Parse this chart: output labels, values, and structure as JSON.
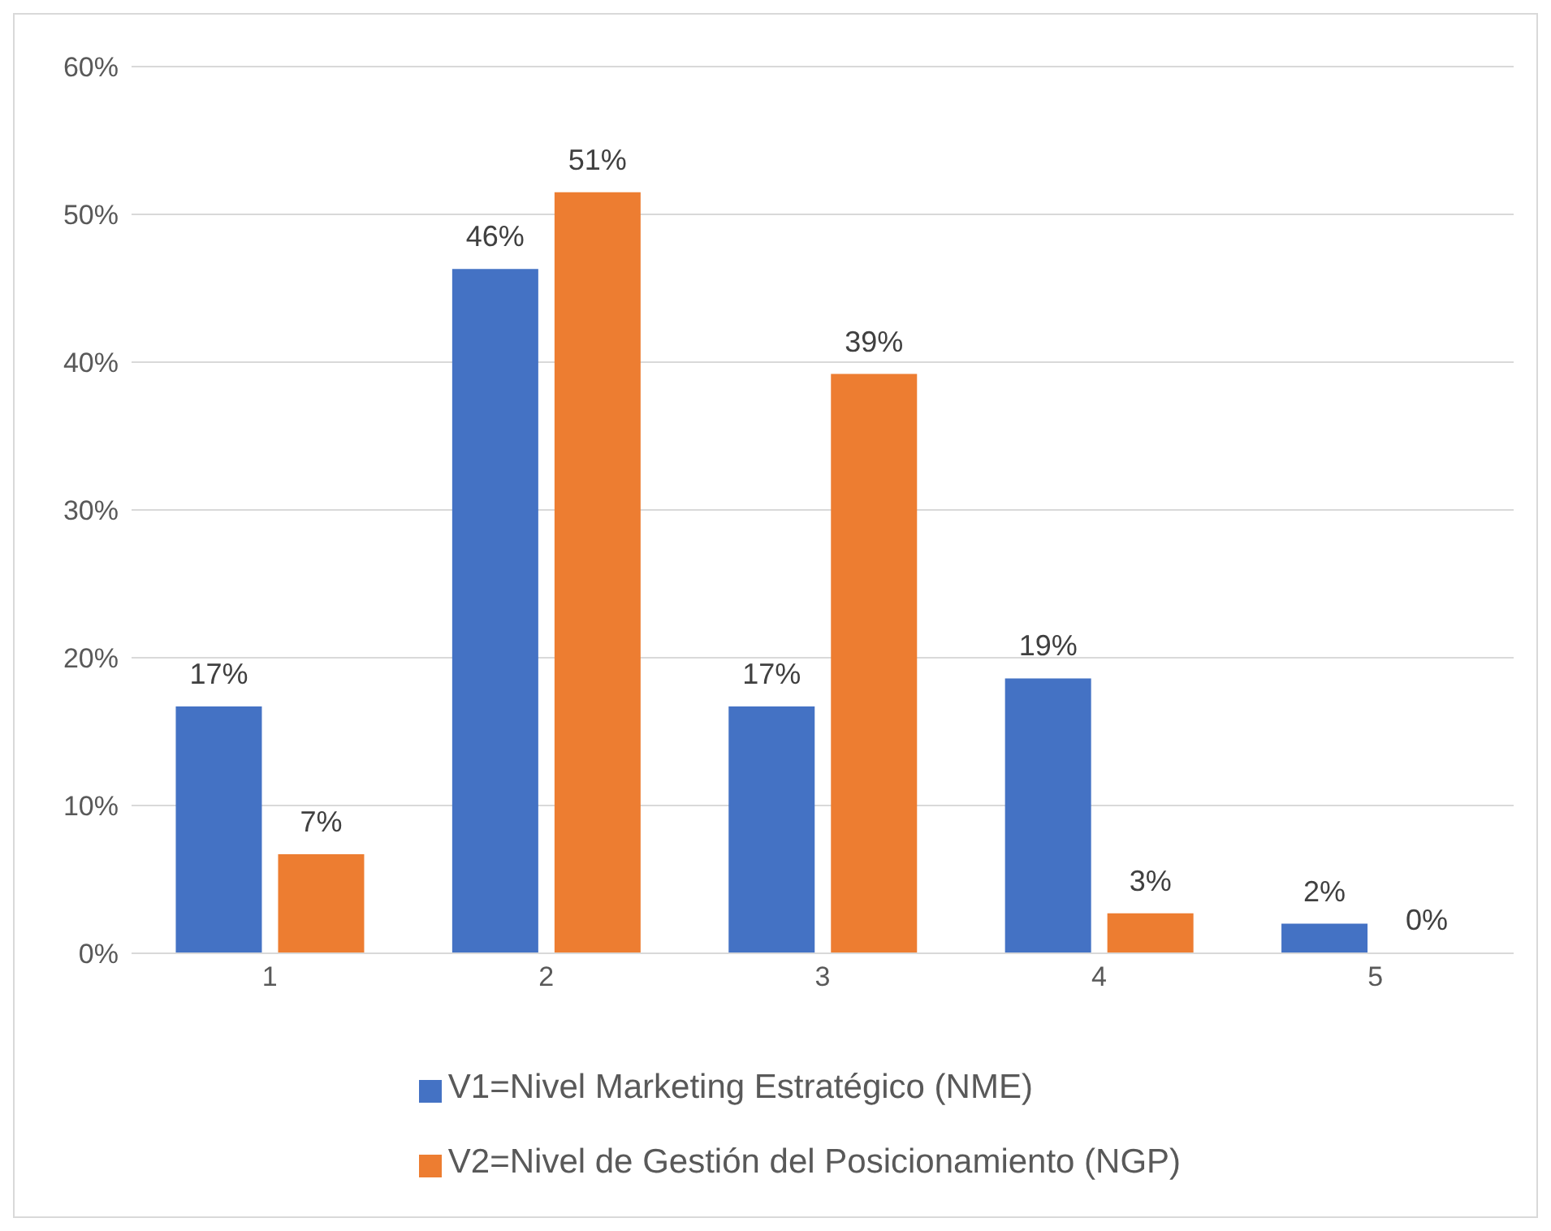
{
  "chart_data": {
    "type": "bar",
    "categories": [
      "1",
      "2",
      "3",
      "4",
      "5"
    ],
    "series": [
      {
        "name": "V1=Nivel Marketing Estratégico (NME)",
        "color": "#4472c4",
        "values": [
          16.7,
          46.3,
          16.7,
          18.6,
          2.0
        ],
        "value_labels": [
          "17%",
          "46%",
          "17%",
          "19%",
          "2%"
        ]
      },
      {
        "name": "V2=Nivel de Gestión del Posicionamiento (NGP)",
        "color": "#ed7d31",
        "values": [
          6.7,
          51.5,
          39.2,
          2.7,
          0
        ],
        "value_labels": [
          "7%",
          "51%",
          "39%",
          "3%",
          "0%"
        ]
      }
    ],
    "ylim": [
      0,
      60
    ],
    "yticks": [
      {
        "value": 0,
        "label": "0%"
      },
      {
        "value": 10,
        "label": "10%"
      },
      {
        "value": 20,
        "label": "20%"
      },
      {
        "value": 30,
        "label": "30%"
      },
      {
        "value": 40,
        "label": "40%"
      },
      {
        "value": 50,
        "label": "50%"
      },
      {
        "value": 60,
        "label": "60%"
      }
    ],
    "grid": "y",
    "legend": "bottom"
  }
}
